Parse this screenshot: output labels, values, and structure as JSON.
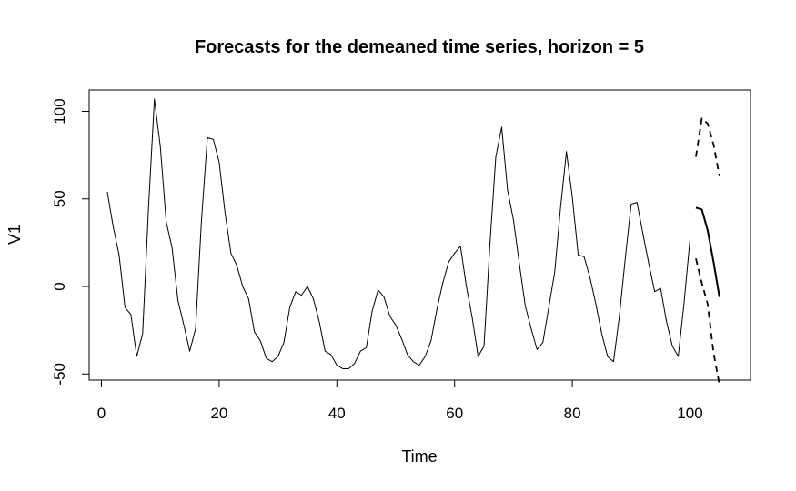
{
  "chart_data": {
    "type": "line",
    "title": "Forecasts for the demeaned time series, horizon = 5",
    "xlabel": "Time",
    "ylabel": "V1",
    "xlim": [
      1,
      105
    ],
    "ylim": [
      -52.5,
      112
    ],
    "x_ticks": [
      0,
      20,
      40,
      60,
      80,
      100
    ],
    "y_ticks": [
      -50,
      0,
      50,
      100
    ],
    "x_tick_labels": [
      "0",
      "20",
      "40",
      "60",
      "80",
      "100"
    ],
    "y_tick_labels": [
      "-50",
      "0",
      "50",
      "100"
    ],
    "grid": false,
    "legend": "none",
    "colors": {
      "series": "#000000",
      "frame": "#000000"
    },
    "series": [
      {
        "x_start": 1,
        "style": "solid",
        "values": [
          54,
          34,
          18,
          -12,
          -16,
          -40,
          -27,
          45,
          107,
          80,
          37,
          22,
          -8,
          -22,
          -37,
          -24,
          38,
          85,
          84,
          71,
          42,
          19,
          12,
          0,
          -7,
          -26,
          -31,
          -41,
          -43,
          -40,
          -32,
          -12,
          -3,
          -5,
          0,
          -7,
          -20,
          -37,
          -39,
          -45,
          -47,
          -47,
          -44,
          -37,
          -35,
          -14,
          -2,
          -6,
          -17,
          -22,
          -30,
          -39,
          -43,
          -45,
          -40,
          -31,
          -13,
          2,
          14,
          19,
          23,
          0,
          -18,
          -40,
          -34,
          24,
          74,
          91,
          55,
          38,
          13,
          -11,
          -24,
          -36,
          -32,
          -12,
          8,
          45,
          77,
          51,
          18,
          17,
          5,
          -10,
          -27,
          -40,
          -43,
          -17,
          16,
          47,
          48,
          30,
          13,
          -3,
          -1,
          -20,
          -34,
          -40,
          -9,
          27
        ]
      },
      {
        "x_start": 101,
        "style": "solid-thick",
        "values": [
          45,
          44,
          32,
          14,
          -6
        ]
      },
      {
        "x_start": 101,
        "style": "dashed",
        "values": [
          74,
          96,
          93,
          81,
          63
        ]
      },
      {
        "x_start": 101,
        "style": "dashed",
        "values": [
          16,
          2,
          -10,
          -38,
          -56
        ]
      }
    ]
  }
}
